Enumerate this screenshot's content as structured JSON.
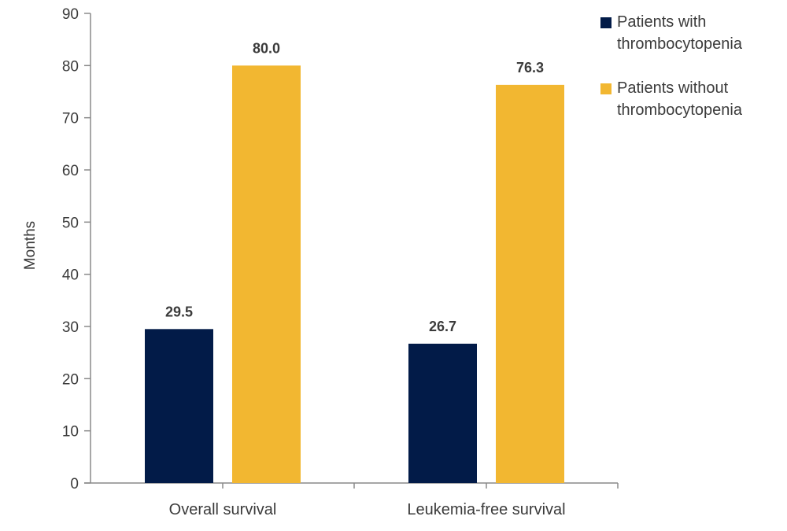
{
  "chart_data": {
    "type": "bar",
    "title": "",
    "xlabel": "",
    "ylabel": "Months",
    "ylim": [
      0,
      90
    ],
    "yticks": [
      0,
      10,
      20,
      30,
      40,
      50,
      60,
      70,
      80,
      90
    ],
    "grid": false,
    "legend_position": "top-right",
    "categories": [
      "Overall survival",
      "Leukemia-free survival"
    ],
    "series": [
      {
        "name": "Patients with thrombocytopenia",
        "color": "#021B48",
        "values": [
          29.5,
          26.7
        ],
        "labels": [
          "29.5",
          "26.7"
        ]
      },
      {
        "name": "Patients without thrombocytopenia",
        "color": "#F2B731",
        "values": [
          80.0,
          76.3
        ],
        "labels": [
          "80.0",
          "76.3"
        ]
      }
    ]
  },
  "legend": {
    "items": [
      {
        "line1": "Patients with",
        "line2": "thrombocytopenia",
        "color": "#021B48"
      },
      {
        "line1": "Patients without",
        "line2": "thrombocytopenia",
        "color": "#F2B731"
      }
    ]
  }
}
